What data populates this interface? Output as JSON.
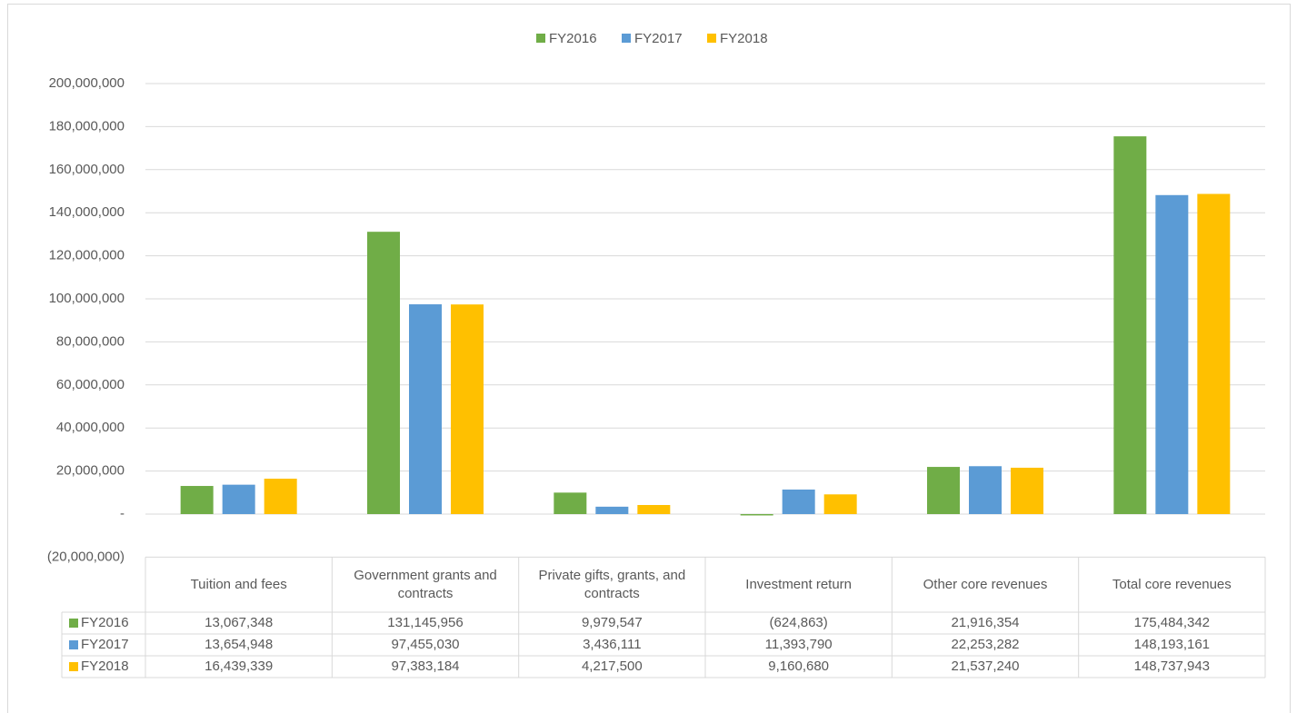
{
  "chart_data": {
    "type": "bar",
    "categories": [
      "Tuition and fees",
      "Government grants and contracts",
      "Private gifts, grants, and contracts",
      "Investment return",
      "Other core revenues",
      "Total core revenues"
    ],
    "series": [
      {
        "name": "FY2016",
        "color": "#70ad47",
        "values": [
          13067348,
          131145956,
          9979547,
          -624863,
          21916354,
          175484342
        ],
        "value_labels": [
          "13,067,348",
          "131,145,956",
          "9,979,547",
          "(624,863)",
          "21,916,354",
          "175,484,342"
        ]
      },
      {
        "name": "FY2017",
        "color": "#5b9bd5",
        "values": [
          13654948,
          97455030,
          3436111,
          11393790,
          22253282,
          148193161
        ],
        "value_labels": [
          "13,654,948",
          "97,455,030",
          "3,436,111",
          "11,393,790",
          "22,253,282",
          "148,193,161"
        ]
      },
      {
        "name": "FY2018",
        "color": "#ffc000",
        "values": [
          16439339,
          97383184,
          4217500,
          9160680,
          21537240,
          148737943
        ],
        "value_labels": [
          "16,439,339",
          "97,383,184",
          "4,217,500",
          "9,160,680",
          "21,537,240",
          "148,737,943"
        ]
      }
    ],
    "ylim": [
      -20000000,
      200000000
    ],
    "yticks": [
      {
        "value": -20000000,
        "label": "(20,000,000)"
      },
      {
        "value": 0,
        "label": "-"
      },
      {
        "value": 20000000,
        "label": "20,000,000"
      },
      {
        "value": 40000000,
        "label": "40,000,000"
      },
      {
        "value": 60000000,
        "label": "60,000,000"
      },
      {
        "value": 80000000,
        "label": "80,000,000"
      },
      {
        "value": 100000000,
        "label": "100,000,000"
      },
      {
        "value": 120000000,
        "label": "120,000,000"
      },
      {
        "value": 140000000,
        "label": "140,000,000"
      },
      {
        "value": 160000000,
        "label": "160,000,000"
      },
      {
        "value": 180000000,
        "label": "180,000,000"
      },
      {
        "value": 200000000,
        "label": "200,000,000"
      }
    ],
    "grid": true,
    "legend": "top",
    "data_table": true
  }
}
